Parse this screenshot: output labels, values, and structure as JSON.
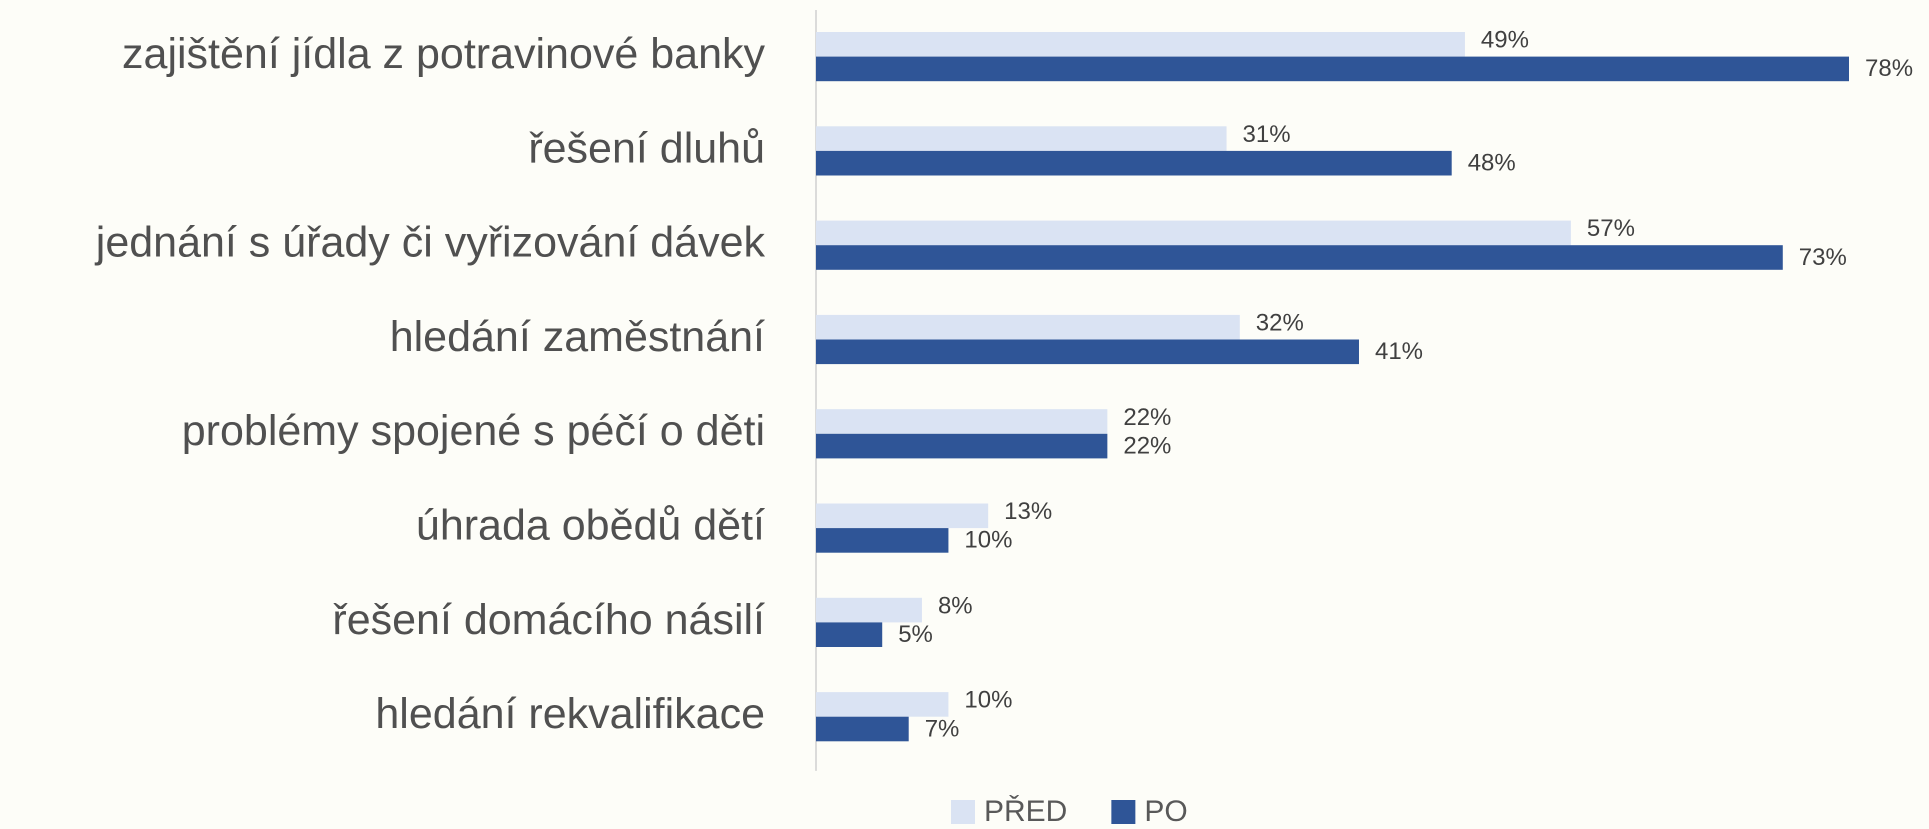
{
  "chart_data": {
    "type": "hbar",
    "categories": [
      "zajištění jídla z potravinové banky",
      "řešení dluhů",
      "jednání s úřady či vyřizování dávek",
      "hledání zaměstnání",
      "problémy spojené s péčí o děti",
      "úhrada obědů dětí",
      "řešení domácího násilí",
      "hledání rekvalifikace"
    ],
    "series": [
      {
        "name": "PŘED",
        "color": "#dae3f3",
        "values": [
          49,
          31,
          57,
          32,
          22,
          13,
          8,
          10
        ],
        "value_labels": [
          "49%",
          "31%",
          "57%",
          "32%",
          "22%",
          "13%",
          "8%",
          "10%"
        ]
      },
      {
        "name": "PO",
        "color": "#2f5597",
        "values": [
          78,
          48,
          73,
          41,
          22,
          10,
          5,
          7
        ],
        "value_labels": [
          "78%",
          "48%",
          "73%",
          "41%",
          "22%",
          "10%",
          "5%",
          "7%"
        ]
      }
    ],
    "legend": "bottom"
  }
}
